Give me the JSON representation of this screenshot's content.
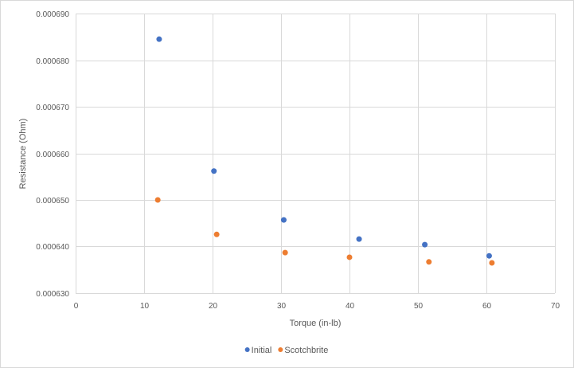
{
  "chart_data": {
    "type": "scatter",
    "xlabel": "Torque (in-lb)",
    "ylabel": "Resistance (Ohm)",
    "xlim": [
      0,
      70
    ],
    "ylim": [
      0.00063,
      0.00069
    ],
    "x_ticks": [
      "0",
      "10",
      "20",
      "30",
      "40",
      "50",
      "60",
      "70"
    ],
    "y_ticks": [
      "0.000630",
      "0.000640",
      "0.000650",
      "0.000660",
      "0.000670",
      "0.000680",
      "0.000690"
    ],
    "grid": true,
    "legend_position": "bottom",
    "series": [
      {
        "name": "Initial",
        "color": "#4472c4",
        "points": [
          {
            "x": 12.2,
            "y": 0.0006845
          },
          {
            "x": 20.2,
            "y": 0.0006562
          },
          {
            "x": 30.4,
            "y": 0.0006457
          },
          {
            "x": 41.4,
            "y": 0.0006416
          },
          {
            "x": 51.0,
            "y": 0.0006404
          },
          {
            "x": 60.4,
            "y": 0.000638
          }
        ]
      },
      {
        "name": "Scotchbrite",
        "color": "#ed7d31",
        "points": [
          {
            "x": 12.0,
            "y": 0.00065
          },
          {
            "x": 20.6,
            "y": 0.0006426
          },
          {
            "x": 30.6,
            "y": 0.0006387
          },
          {
            "x": 40.0,
            "y": 0.0006377
          },
          {
            "x": 51.6,
            "y": 0.0006367
          },
          {
            "x": 60.8,
            "y": 0.0006365
          }
        ]
      }
    ]
  }
}
